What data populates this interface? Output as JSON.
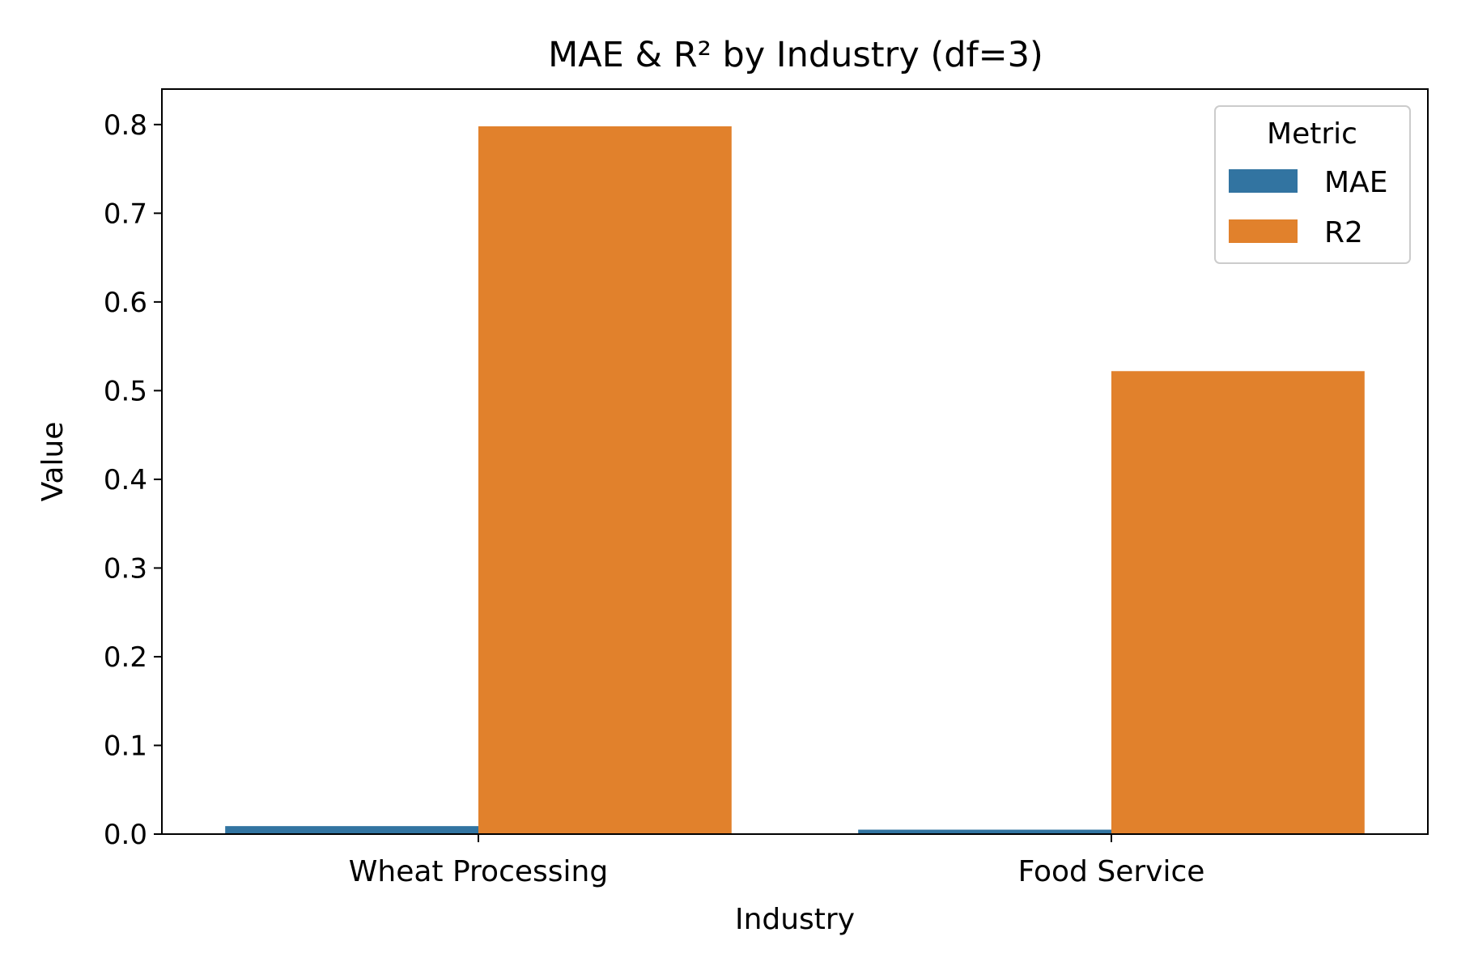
{
  "chart_data": {
    "type": "bar",
    "title": "MAE & R² by Industry (df=3)",
    "xlabel": "Industry",
    "ylabel": "Value",
    "categories": [
      "Wheat Processing",
      "Food Service"
    ],
    "series": [
      {
        "name": "MAE",
        "color": "#3274a1",
        "values": [
          0.009,
          0.005
        ]
      },
      {
        "name": "R2",
        "color": "#e1812c",
        "values": [
          0.798,
          0.522
        ]
      }
    ],
    "ylim": [
      0,
      0.84
    ],
    "yticks": [
      0.0,
      0.1,
      0.2,
      0.3,
      0.4,
      0.5,
      0.6,
      0.7,
      0.8
    ],
    "ytick_labels": [
      "0.0",
      "0.1",
      "0.2",
      "0.3",
      "0.4",
      "0.5",
      "0.6",
      "0.7",
      "0.8"
    ],
    "legend": {
      "title": "Metric",
      "placement": "top-right"
    },
    "grid": false
  }
}
